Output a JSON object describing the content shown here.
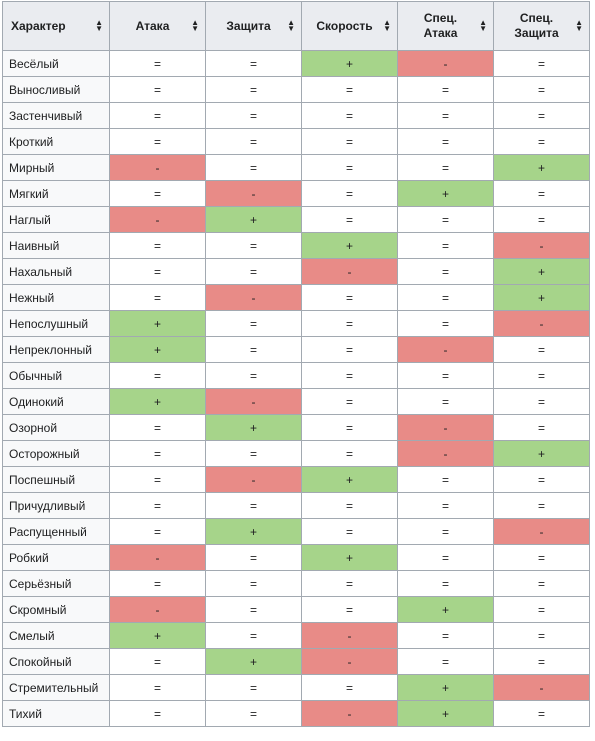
{
  "headers": [
    "Характер",
    "Атака",
    "Защита",
    "Скорость",
    "Спец.\nАтака",
    "Спец.\nЗащита"
  ],
  "header_lines": [
    [
      "Характер"
    ],
    [
      "Атака"
    ],
    [
      "Защита"
    ],
    [
      "Скорость"
    ],
    [
      "Спец.",
      "Атака"
    ],
    [
      "Спец.",
      "Защита"
    ]
  ],
  "sort_icon": "sort-arrows-icon",
  "colors": {
    "plus": "#a6d48a",
    "minus": "#e88b87",
    "header": "#eaecf0",
    "border": "#a2a9b1"
  },
  "rows": [
    [
      "Весёлый",
      "=",
      "=",
      "+",
      "-",
      "="
    ],
    [
      "Выносливый",
      "=",
      "=",
      "=",
      "=",
      "="
    ],
    [
      "Застенчивый",
      "=",
      "=",
      "=",
      "=",
      "="
    ],
    [
      "Кроткий",
      "=",
      "=",
      "=",
      "=",
      "="
    ],
    [
      "Мирный",
      "-",
      "=",
      "=",
      "=",
      "+"
    ],
    [
      "Мягкий",
      "=",
      "-",
      "=",
      "+",
      "="
    ],
    [
      "Наглый",
      "-",
      "+",
      "=",
      "=",
      "="
    ],
    [
      "Наивный",
      "=",
      "=",
      "+",
      "=",
      "-"
    ],
    [
      "Нахальный",
      "=",
      "=",
      "-",
      "=",
      "+"
    ],
    [
      "Нежный",
      "=",
      "-",
      "=",
      "=",
      "+"
    ],
    [
      "Непослушный",
      "+",
      "=",
      "=",
      "=",
      "-"
    ],
    [
      "Непреклонный",
      "+",
      "=",
      "=",
      "-",
      "="
    ],
    [
      "Обычный",
      "=",
      "=",
      "=",
      "=",
      "="
    ],
    [
      "Одинокий",
      "+",
      "-",
      "=",
      "=",
      "="
    ],
    [
      "Озорной",
      "=",
      "+",
      "=",
      "-",
      "="
    ],
    [
      "Осторожный",
      "=",
      "=",
      "=",
      "-",
      "+"
    ],
    [
      "Поспешный",
      "=",
      "-",
      "+",
      "=",
      "="
    ],
    [
      "Причудливый",
      "=",
      "=",
      "=",
      "=",
      "="
    ],
    [
      "Распущенный",
      "=",
      "+",
      "=",
      "=",
      "-"
    ],
    [
      "Робкий",
      "-",
      "=",
      "+",
      "=",
      "="
    ],
    [
      "Серьёзный",
      "=",
      "=",
      "=",
      "=",
      "="
    ],
    [
      "Скромный",
      "-",
      "=",
      "=",
      "+",
      "="
    ],
    [
      "Смелый",
      "+",
      "=",
      "-",
      "=",
      "="
    ],
    [
      "Спокойный",
      "=",
      "+",
      "-",
      "=",
      "="
    ],
    [
      "Стремительный",
      "=",
      "=",
      "=",
      "+",
      "-"
    ],
    [
      "Тихий",
      "=",
      "=",
      "-",
      "+",
      "="
    ]
  ]
}
